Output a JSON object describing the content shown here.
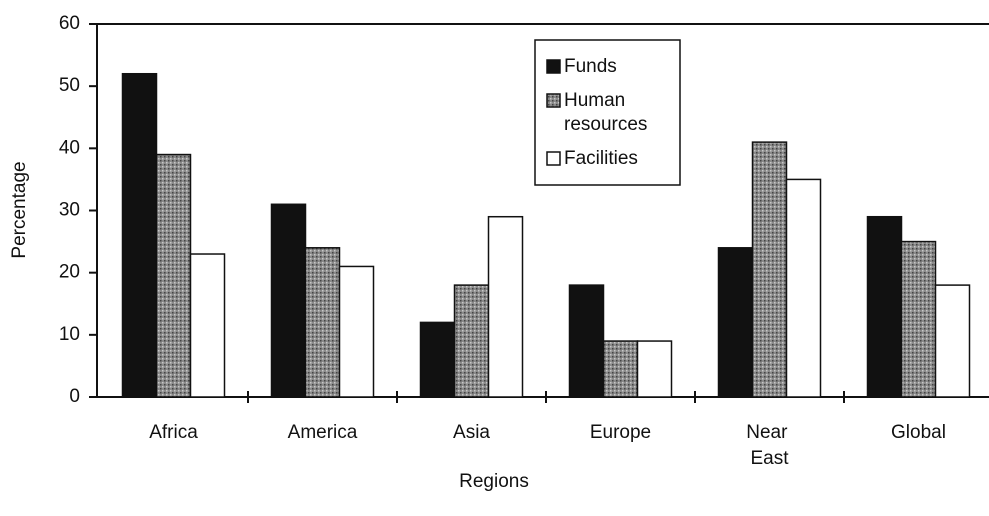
{
  "chart_data": {
    "type": "bar",
    "x_label": "Regions",
    "y_label": "Percentage",
    "categories": [
      "Africa",
      "America",
      "Asia",
      "Europe",
      "Near East",
      "Global"
    ],
    "series": [
      {
        "name": "Funds",
        "color": "#111111",
        "values": [
          52,
          31,
          12,
          18,
          24,
          29
        ]
      },
      {
        "name": "Human resources",
        "color": "#8a8a8a",
        "values": [
          39,
          24,
          18,
          9,
          41,
          25
        ]
      },
      {
        "name": "Facilities",
        "color": "#ffffff",
        "values": [
          23,
          21,
          29,
          9,
          35,
          18
        ]
      }
    ],
    "ylim": [
      0,
      60
    ],
    "yticks": [
      0,
      10,
      20,
      30,
      40,
      50,
      60
    ],
    "legend": "top-center"
  }
}
